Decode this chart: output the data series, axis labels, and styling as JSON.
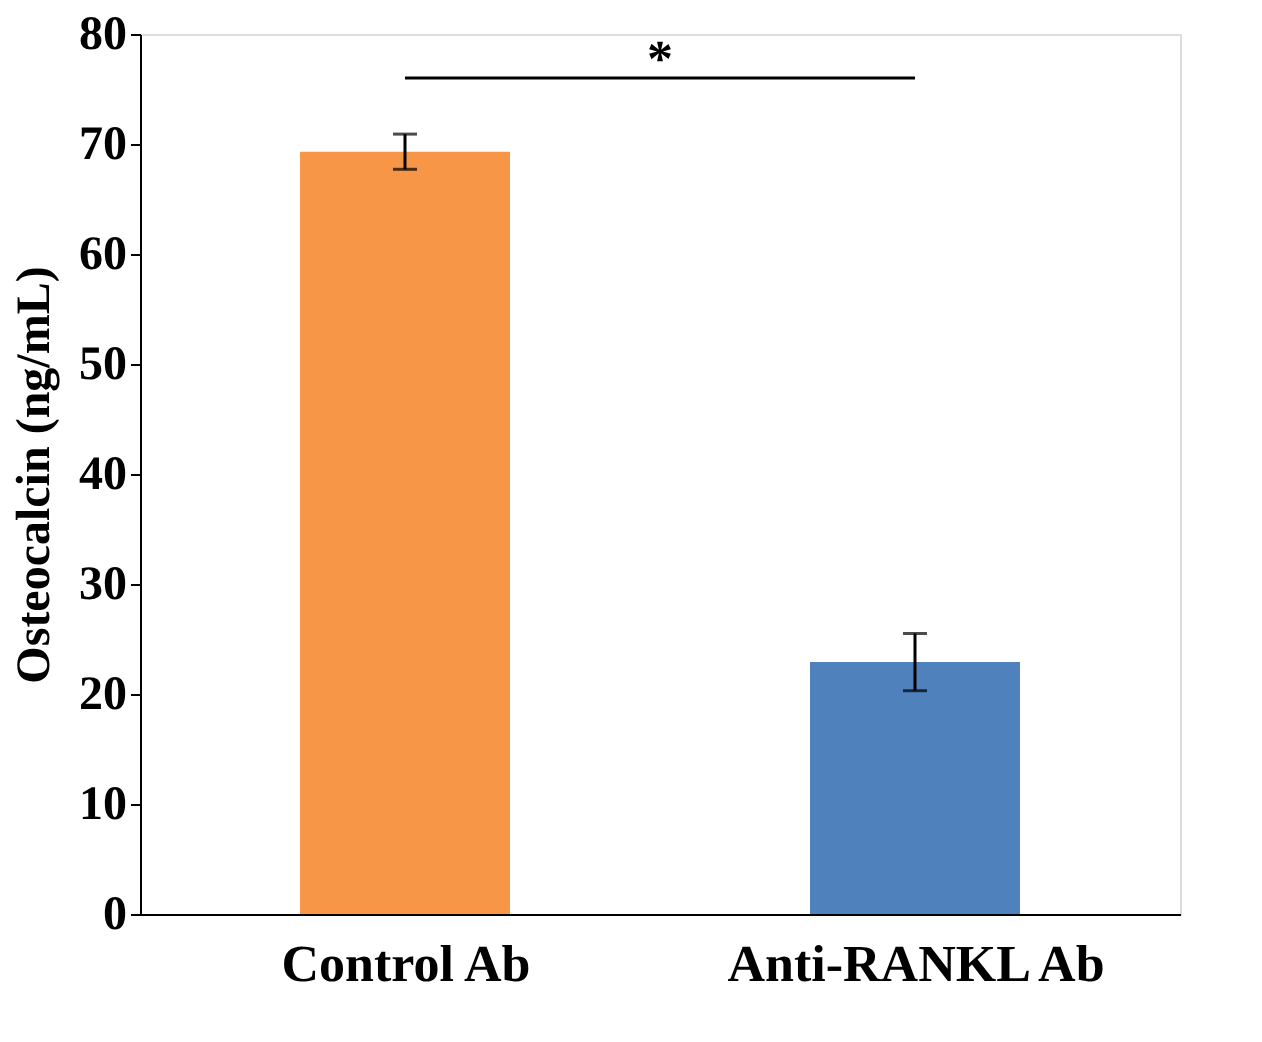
{
  "chart_data": {
    "type": "bar",
    "ylabel": "Osteocalcin (ng/mL)",
    "categories": [
      "Control Ab",
      "Anti-RANKL Ab"
    ],
    "values": [
      69.3,
      22.9
    ],
    "errors": [
      1.6,
      2.6
    ],
    "colors": [
      "#f79646",
      "#4f81bd"
    ],
    "ylim": [
      0,
      80
    ],
    "yticks": [
      0,
      10,
      20,
      30,
      40,
      50,
      60,
      70,
      80
    ],
    "grid": false,
    "annotations": [
      "*"
    ]
  }
}
